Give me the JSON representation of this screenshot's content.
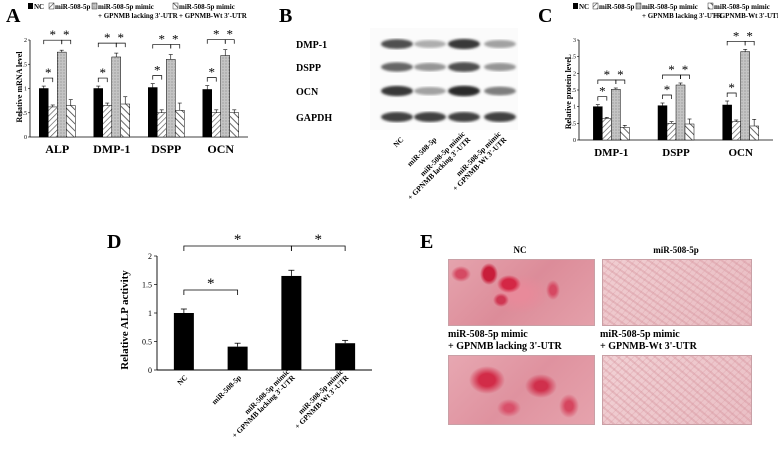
{
  "panels": {
    "a": "A",
    "b": "B",
    "c": "C",
    "d": "D",
    "e": "E"
  },
  "legend": {
    "nc": "NC",
    "mir": "miR-508-5p",
    "lacking_l1": "miR-508-5p mimic",
    "lacking_l2": "+ GPNMB lacking 3'-UTR",
    "wt_l1": "miR-508-5p mimic",
    "wt_l2": "+ GPNMB-Wt 3'-UTR"
  },
  "significance_mark": "*",
  "western_blot": {
    "bands": [
      "DMP-1",
      "DSPP",
      "OCN",
      "GAPDH"
    ],
    "lanes": [
      "NC",
      "miR-508-5p",
      "miR-508-5p mimic\n+ GPNMB lacking 3'-UTR",
      "miR-508-5p mimic\n+ GPNMB-Wt 3'-UTR"
    ],
    "intensity": [
      [
        0.75,
        0.35,
        0.85,
        0.4
      ],
      [
        0.65,
        0.45,
        0.75,
        0.45
      ],
      [
        0.85,
        0.4,
        0.9,
        0.55
      ],
      [
        0.8,
        0.8,
        0.8,
        0.8
      ]
    ]
  },
  "photos": {
    "nc": "NC",
    "mir": "miR-508-5p",
    "lacking_l1": "miR-508-5p mimic",
    "lacking_l2": "+ GPNMB lacking 3'-UTR",
    "wt_l1": "miR-508-5p mimic",
    "wt_l2": "+ GPNMB-Wt 3'-UTR"
  },
  "chart_data": [
    {
      "panel": "A",
      "type": "bar",
      "categories": [
        "ALP",
        "DMP-1",
        "DSPP",
        "OCN"
      ],
      "ylabel": "Relative mRNA level",
      "ylim": [
        0,
        2
      ],
      "yticks": [
        "0",
        "0.5",
        "1",
        "1.5",
        "2"
      ],
      "series": [
        {
          "name": "NC",
          "values": [
            1.0,
            1.0,
            1.02,
            0.98
          ],
          "errors": [
            0.05,
            0.05,
            0.08,
            0.08
          ]
        },
        {
          "name": "miR-508-5p",
          "values": [
            0.62,
            0.65,
            0.5,
            0.5
          ],
          "errors": [
            0.04,
            0.05,
            0.06,
            0.06
          ]
        },
        {
          "name": "miR-508-5p mimic + GPNMB lacking 3'-UTR",
          "values": [
            1.75,
            1.65,
            1.6,
            1.68
          ],
          "errors": [
            0.04,
            0.08,
            0.1,
            0.12
          ]
        },
        {
          "name": "miR-508-5p mimic + GPNMB-Wt 3'-UTR",
          "values": [
            0.65,
            0.68,
            0.55,
            0.5
          ],
          "errors": [
            0.12,
            0.15,
            0.15,
            0.06
          ]
        }
      ]
    },
    {
      "panel": "C",
      "type": "bar",
      "categories": [
        "DMP-1",
        "DSPP",
        "OCN"
      ],
      "ylabel": "Relative protein level",
      "ylim": [
        0,
        3
      ],
      "yticks": [
        "0",
        "0.5",
        "1",
        "1.5",
        "2",
        "2.5",
        "3"
      ],
      "series": [
        {
          "name": "NC",
          "values": [
            1.0,
            1.03,
            1.05
          ],
          "errors": [
            0.06,
            0.08,
            0.12
          ]
        },
        {
          "name": "miR-508-5p",
          "values": [
            0.65,
            0.5,
            0.55
          ],
          "errors": [
            0.03,
            0.05,
            0.05
          ]
        },
        {
          "name": "miR-508-5p mimic + GPNMB lacking 3'-UTR",
          "values": [
            1.52,
            1.65,
            2.65
          ],
          "errors": [
            0.04,
            0.06,
            0.07
          ]
        },
        {
          "name": "miR-508-5p mimic + GPNMB-Wt 3'-UTR",
          "values": [
            0.38,
            0.48,
            0.42
          ],
          "errors": [
            0.06,
            0.15,
            0.2
          ]
        }
      ]
    },
    {
      "panel": "D",
      "type": "bar",
      "categories": [
        "NC",
        "miR-508-5p",
        "miR-508-5p mimic\n+ GPNMB lacking 3'-UTR",
        "miR-508-5p mimic\n+ GPNMB-Wt 3'-UTR"
      ],
      "ylabel": "Relative ALP activity",
      "ylim": [
        0,
        2
      ],
      "yticks": [
        "0",
        "0.5",
        "1",
        "1.5",
        "2"
      ],
      "values": [
        1.0,
        0.41,
        1.65,
        0.47
      ],
      "errors": [
        0.07,
        0.06,
        0.1,
        0.05
      ]
    }
  ],
  "colors": {
    "nc": "#000000",
    "mir": "#ffffff",
    "lacking": "#bdbdbd",
    "wt": "#ffffff"
  }
}
